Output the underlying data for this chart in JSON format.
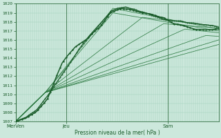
{
  "xlabel": "Pression niveau de la mer( hPa )",
  "ylim": [
    1007,
    1020
  ],
  "xlim": [
    0,
    96
  ],
  "ytick_min": 1007,
  "ytick_max": 1020,
  "background_color": "#cce8dc",
  "grid_color": "#9ecfb8",
  "line_color_dark": "#1a5c2a",
  "line_color_light": "#2d7a42",
  "xtick_positions": [
    0,
    24,
    72
  ],
  "xtick_labels": [
    "MerVen",
    "Jeu",
    "Sam"
  ]
}
